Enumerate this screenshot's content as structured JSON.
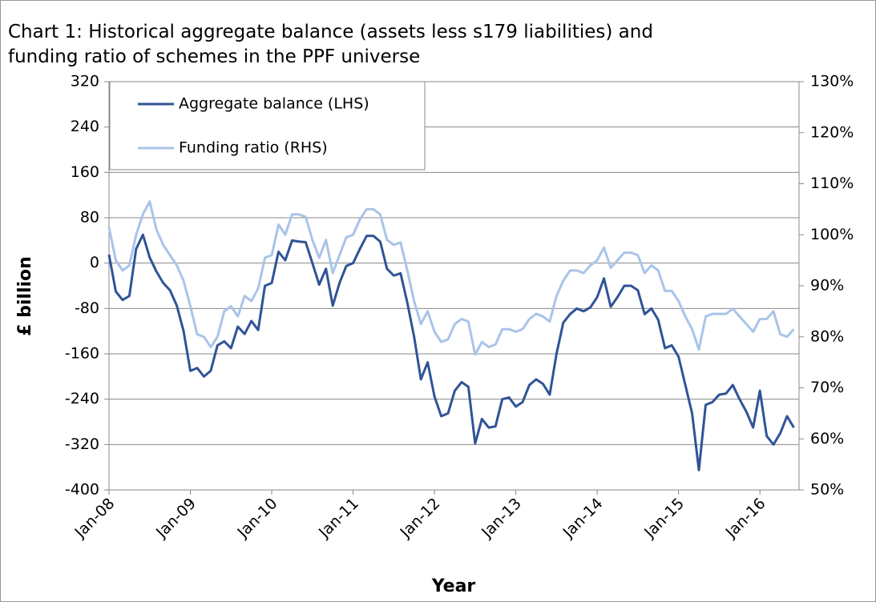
{
  "chart_data": {
    "type": "line",
    "title": "Chart 1: Historical aggregate balance (assets less s179 liabilities) and funding ratio of schemes in the PPF universe",
    "x_label": "Year",
    "y_label": "£ billion",
    "categories": [
      "Jan-08",
      null,
      null,
      null,
      null,
      null,
      null,
      null,
      null,
      null,
      null,
      null,
      "Jan-09",
      null,
      null,
      null,
      null,
      null,
      null,
      null,
      null,
      null,
      null,
      null,
      "Jan-10",
      null,
      null,
      null,
      null,
      null,
      null,
      null,
      null,
      null,
      null,
      null,
      "Jan-11",
      null,
      null,
      null,
      null,
      null,
      null,
      null,
      null,
      null,
      null,
      null,
      "Jan-12",
      null,
      null,
      null,
      null,
      null,
      null,
      null,
      null,
      null,
      null,
      null,
      "Jan-13",
      null,
      null,
      null,
      null,
      null,
      null,
      null,
      null,
      null,
      null,
      null,
      "Jan-14",
      null,
      null,
      null,
      null,
      null,
      null,
      null,
      null,
      null,
      null,
      null,
      "Jan-15",
      null,
      null,
      null,
      null,
      null,
      null,
      null,
      null,
      null,
      null,
      null,
      "Jan-16",
      null,
      null,
      null,
      null,
      null
    ],
    "series": [
      {
        "name": "Aggregate balance (LHS)",
        "color": "#2f5496",
        "axis": "y",
        "values": [
          15,
          -50,
          -65,
          -58,
          25,
          50,
          10,
          -15,
          -35,
          -48,
          -75,
          -120,
          -190,
          -185,
          -200,
          -190,
          -145,
          -138,
          -150,
          -112,
          -125,
          -102,
          -118,
          -40,
          -35,
          20,
          5,
          40,
          38,
          37,
          0,
          -38,
          -10,
          -75,
          -35,
          -5,
          0,
          25,
          48,
          48,
          38,
          -10,
          -22,
          -18,
          -70,
          -130,
          -205,
          -175,
          -235,
          -270,
          -265,
          -225,
          -210,
          -218,
          -318,
          -275,
          -290,
          -288,
          -240,
          -237,
          -253,
          -245,
          -215,
          -205,
          -213,
          -232,
          -160,
          -105,
          -90,
          -80,
          -85,
          -78,
          -60,
          -27,
          -77,
          -60,
          -40,
          -40,
          -48,
          -90,
          -80,
          -100,
          -150,
          -145,
          -165,
          -215,
          -265,
          -365,
          -250,
          -245,
          -232,
          -230,
          -215,
          -240,
          -262,
          -290,
          -225,
          -305,
          -320,
          -300,
          -270,
          -290
        ]
      },
      {
        "name": "Funding ratio (RHS)",
        "color": "#a9c4e8",
        "axis": "y2",
        "values": [
          101.5,
          95,
          93,
          94,
          100,
          104,
          106.5,
          101,
          98,
          96,
          94,
          91,
          86,
          80.5,
          80,
          78,
          80,
          85,
          86,
          84,
          88,
          87,
          89.5,
          95.5,
          96,
          102,
          100,
          104,
          104,
          103.5,
          99,
          95.5,
          99,
          92.5,
          96,
          99.5,
          100,
          103,
          105,
          105,
          104,
          99,
          98,
          98.5,
          93,
          87,
          82.5,
          85,
          81,
          79,
          79.5,
          82.5,
          83.5,
          83,
          76.5,
          79,
          78,
          78.5,
          81.5,
          81.5,
          81,
          81.5,
          83.5,
          84.5,
          84,
          83,
          88,
          91,
          93,
          93,
          92.5,
          94,
          95,
          97.5,
          93.5,
          95,
          96.5,
          96.5,
          96,
          92.5,
          94,
          93,
          89,
          89,
          87,
          84,
          81.5,
          77.5,
          84,
          84.5,
          84.5,
          84.5,
          85.5,
          84,
          82.5,
          81,
          83.5,
          83.5,
          85,
          80.5,
          80,
          81.5
        ]
      }
    ],
    "ylim": [
      -400,
      320
    ],
    "yticks": [
      320,
      240,
      160,
      80,
      0,
      -80,
      -160,
      -240,
      -320,
      -400
    ],
    "y2lim": [
      50,
      130
    ],
    "y2ticks": [
      {
        "value": 130,
        "label": "130%"
      },
      {
        "value": 120,
        "label": "120%"
      },
      {
        "value": 110,
        "label": "110%"
      },
      {
        "value": 100,
        "label": "100%"
      },
      {
        "value": 90,
        "label": "90%"
      },
      {
        "value": 80,
        "label": "80%"
      },
      {
        "value": 70,
        "label": "70%"
      },
      {
        "value": 60,
        "label": "60%"
      },
      {
        "value": 50,
        "label": "50%"
      }
    ],
    "grid": true,
    "legend": "upper left"
  }
}
